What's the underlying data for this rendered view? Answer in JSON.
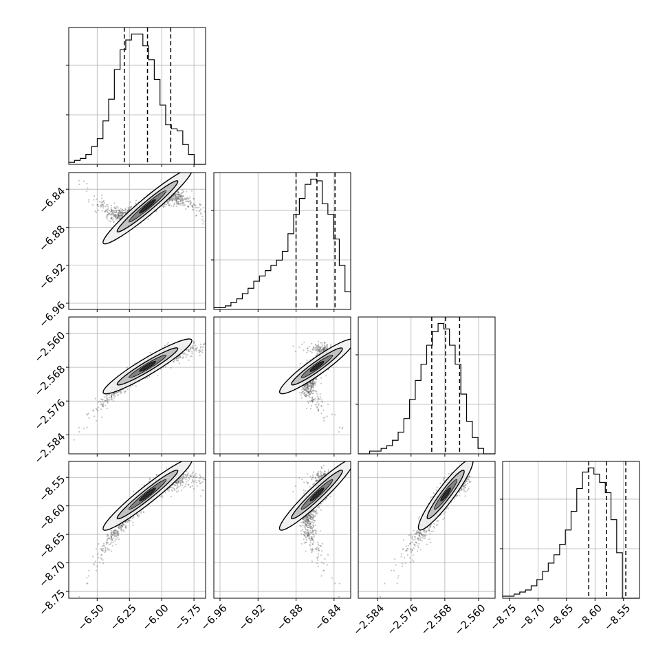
{
  "chart_data": {
    "type": "corner",
    "title": "",
    "parameters": [
      {
        "name": "",
        "range": [
          -6.72,
          -5.66
        ],
        "ticks": [
          -6.5,
          -6.25,
          -6.0,
          -5.75
        ],
        "tick_labels": [
          "−6.50",
          "−6.25",
          "−6.00",
          "−5.75"
        ],
        "quantiles": [
          -6.29,
          -6.11,
          -5.93
        ]
      },
      {
        "name": "",
        "range": [
          -6.9665,
          -6.8225
        ],
        "ticks": [
          -6.84,
          -6.88,
          -6.92,
          -6.96
        ],
        "tick_labels": [
          "−6.84",
          "−6.88",
          "−6.92",
          "−6.96"
        ],
        "quantiles": [
          -6.88,
          -6.858,
          -6.839
        ]
      },
      {
        "name": "",
        "range": [
          -2.5885,
          -2.5561
        ],
        "ticks": [
          -2.56,
          -2.568,
          -2.576,
          -2.584
        ],
        "tick_labels": [
          "−2.560",
          "−2.568",
          "−2.576",
          "−2.584"
        ],
        "quantiles": [
          -2.5711,
          -2.5678,
          -2.5645
        ]
      },
      {
        "name": "",
        "range": [
          -8.762,
          -8.522
        ],
        "ticks": [
          -8.55,
          -8.6,
          -8.65,
          -8.7,
          -8.75
        ],
        "tick_labels": [
          "−8.55",
          "−8.60",
          "−8.65",
          "−8.70",
          "−8.75"
        ],
        "quantiles": [
          -8.611,
          -8.58,
          -8.546
        ]
      }
    ],
    "histograms": [
      [
        1,
        2,
        3,
        5,
        9,
        13,
        22,
        33,
        48,
        58,
        63,
        66,
        66,
        60,
        53,
        43,
        30,
        20,
        18,
        17,
        10,
        5,
        0,
        0
      ],
      [
        1,
        1,
        2,
        4,
        6,
        9,
        12,
        16,
        19,
        22,
        25,
        28,
        33,
        43,
        54,
        63,
        71,
        74,
        73,
        60,
        54,
        40,
        25,
        10
      ],
      [
        0,
        0,
        1,
        1,
        2,
        3,
        5,
        8,
        13,
        20,
        27,
        33,
        40,
        45,
        48,
        46,
        40,
        33,
        22,
        12,
        6,
        2,
        0,
        0
      ],
      [
        1,
        1,
        2,
        3,
        4,
        6,
        9,
        13,
        17,
        21,
        26,
        33,
        42,
        53,
        61,
        63,
        60,
        56,
        51,
        38,
        22,
        0,
        0,
        0
      ]
    ],
    "grid": true,
    "legend": "none"
  }
}
